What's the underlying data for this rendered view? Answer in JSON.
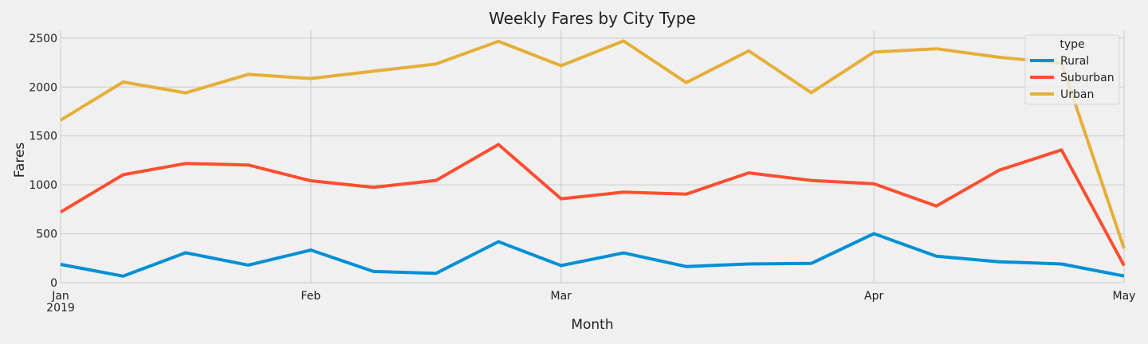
{
  "chart_data": {
    "type": "line",
    "title": "Weekly Fares by City Type",
    "xlabel": "Month",
    "ylabel": "Fares",
    "x_dates": [
      "2019-01-06",
      "2019-01-13",
      "2019-01-20",
      "2019-01-27",
      "2019-02-03",
      "2019-02-10",
      "2019-02-17",
      "2019-02-24",
      "2019-03-03",
      "2019-03-10",
      "2019-03-17",
      "2019-03-24",
      "2019-03-31",
      "2019-04-07",
      "2019-04-14",
      "2019-04-21",
      "2019-04-28",
      "2019-05-05"
    ],
    "x_range": [
      "2019-01-06",
      "2019-05-05"
    ],
    "x_ticks": [
      {
        "date": "2019-01-06",
        "label": "Jan",
        "sublabel": "2019"
      },
      {
        "date": "2019-02-03",
        "label": "Feb",
        "sublabel": ""
      },
      {
        "date": "2019-03-03",
        "label": "Mar",
        "sublabel": ""
      },
      {
        "date": "2019-04-07",
        "label": "Apr",
        "sublabel": ""
      },
      {
        "date": "2019-05-05",
        "label": "May",
        "sublabel": ""
      }
    ],
    "ylim": [
      0,
      2580
    ],
    "y_ticks": [
      0,
      500,
      1000,
      1500,
      2000,
      2500
    ],
    "y_tick_labels": [
      "0",
      "500",
      "1000",
      "1500",
      "2000",
      "2500"
    ],
    "grid": true,
    "legend": {
      "title": "type",
      "placement": "top-right"
    },
    "series": [
      {
        "name": "Rural",
        "color": "#008fd5",
        "values": [
          187,
          67,
          306,
          180,
          334,
          115,
          95,
          419,
          175,
          304,
          165,
          191,
          197,
          501,
          270,
          214,
          191,
          68
        ]
      },
      {
        "name": "Suburban",
        "color": "#fc4f30",
        "values": [
          722,
          1104,
          1218,
          1203,
          1042,
          974,
          1045,
          1412,
          858,
          925,
          905,
          1122,
          1045,
          1011,
          784,
          1149,
          1357,
          175
        ]
      },
      {
        "name": "Urban",
        "color": "#e5ae38",
        "values": [
          1661,
          2051,
          1940,
          2129,
          2087,
          2162,
          2235,
          2467,
          2218,
          2471,
          2045,
          2369,
          1942,
          2357,
          2391,
          2304,
          2244,
          350
        ]
      }
    ]
  }
}
